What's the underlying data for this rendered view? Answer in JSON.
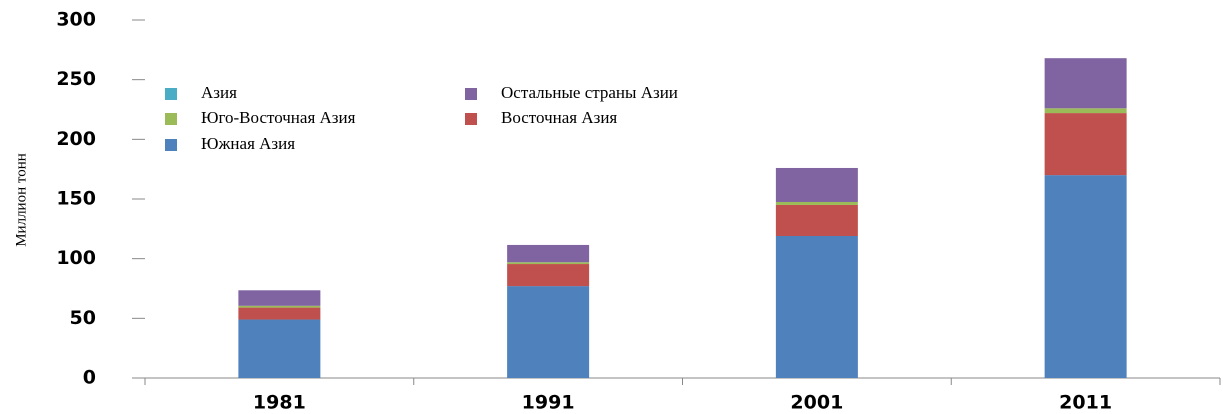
{
  "chart_data": {
    "type": "bar",
    "stacked": true,
    "y_label": "Миллион тонн",
    "categories": [
      "1981",
      "1991",
      "2001",
      "2011"
    ],
    "series": [
      {
        "name": "Южная Азия",
        "color": "#4f81bd",
        "values": [
          49,
          77,
          119,
          170
        ]
      },
      {
        "name": "Восточная Азия",
        "color": "#c0504d",
        "values": [
          10,
          18.5,
          26,
          52
        ]
      },
      {
        "name": "Юго-Восточная Азия",
        "color": "#9bbb59",
        "values": [
          1.5,
          1.5,
          2.5,
          4
        ]
      },
      {
        "name": "Остальные страны Азии",
        "color": "#8064a2",
        "values": [
          13,
          14.5,
          28.5,
          42
        ]
      },
      {
        "name": "Азия",
        "color": "#4bacc6",
        "values": [
          0,
          0,
          0,
          0
        ]
      }
    ],
    "ylim": [
      0,
      300
    ],
    "yticks": [
      0,
      50,
      100,
      150,
      200,
      250,
      300
    ],
    "grid": false
  }
}
